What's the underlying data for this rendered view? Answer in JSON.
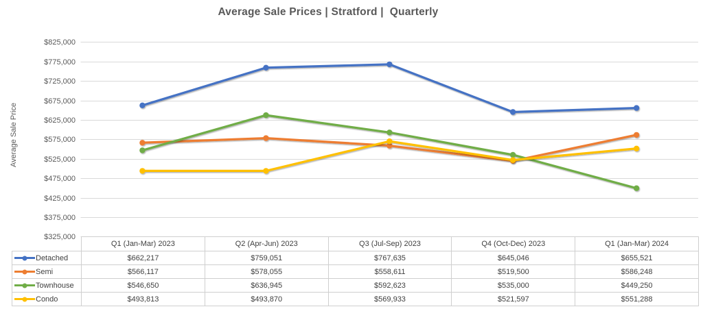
{
  "title": "Average Sale Prices | Stratford |  Quarterly",
  "chart_data": {
    "type": "line",
    "title": "Average Sale Prices | Stratford |  Quarterly",
    "xlabel": "",
    "ylabel": "Average Sale Price",
    "ylim": [
      325000,
      825000
    ],
    "ytick_step": 50000,
    "ytick_format": "$#,##0",
    "grid": true,
    "markers": true,
    "legend_position": "data-table-left",
    "categories": [
      "Q1 (Jan-Mar) 2023",
      "Q2 (Apr-Jun) 2023",
      "Q3 (Jul-Sep) 2023",
      "Q4 (Oct-Dec) 2023",
      "Q1 (Jan-Mar) 2024"
    ],
    "series": [
      {
        "name": "Detached",
        "color": "#4472C4",
        "values": [
          662217,
          759051,
          767635,
          645046,
          655521
        ]
      },
      {
        "name": "Semi",
        "color": "#ED7D31",
        "values": [
          566117,
          578055,
          558611,
          519500,
          586248
        ]
      },
      {
        "name": "Townhouse",
        "color": "#70AD47",
        "values": [
          546650,
          636945,
          592623,
          535000,
          449250
        ]
      },
      {
        "name": "Condo",
        "color": "#FFC000",
        "values": [
          493813,
          493870,
          569933,
          521597,
          551288
        ]
      }
    ]
  },
  "colors": {
    "title_text": "#595959",
    "axis_text": "#595959",
    "table_text": "#404040",
    "gridline": "#D9D9D9",
    "table_border": "#CFCFCF",
    "background": "#FFFFFF"
  }
}
